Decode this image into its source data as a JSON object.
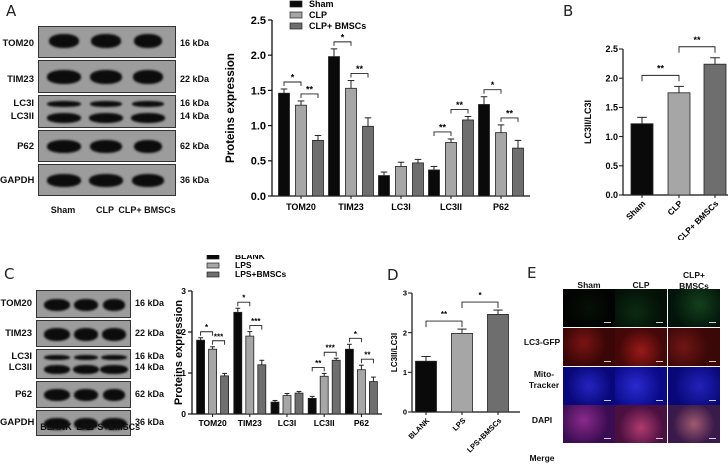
{
  "panels": {
    "A": {
      "letter": "A"
    },
    "B": {
      "letter": "B"
    },
    "C": {
      "letter": "C"
    },
    "D": {
      "letter": "D"
    },
    "E": {
      "letter": "E"
    }
  },
  "western_blot_A": {
    "proteins": [
      "TOM20",
      "TIM23",
      "LC3I",
      "LC3II",
      "P62",
      "GAPDH"
    ],
    "sizes": [
      "16 kDa",
      "22 kDa",
      "16 kDa",
      "14 kDa",
      "62 kDa",
      "36 kDa"
    ],
    "lanes": [
      "Sham",
      "CLP",
      "CLP+ BMSCs"
    ]
  },
  "western_blot_C": {
    "proteins": [
      "TOM20",
      "TIM23",
      "LC3I",
      "LC3II",
      "P62",
      "GAPDH"
    ],
    "sizes": [
      "16 kDa",
      "22 kDa",
      "16 kDa",
      "14 kDa",
      "62 kDa",
      "36 kDa"
    ],
    "lanes": [
      "BLANK",
      "LPS",
      "LPS+BMSCs"
    ]
  },
  "colors": {
    "black": "#0a0a0a",
    "light_gray": "#a6a6a6",
    "dark_gray": "#6e6e6e"
  },
  "chart_data": [
    {
      "id": "A-bar",
      "type": "bar",
      "title": "",
      "xlabel": "",
      "ylabel": "Proteins expression",
      "ylim": [
        0,
        2.5
      ],
      "yticks": [
        "0.0",
        "0.5",
        "1.0",
        "1.5",
        "2.0",
        "2.5"
      ],
      "categories": [
        "TOM20",
        "TIM23",
        "LC3I",
        "LC3II",
        "P62"
      ],
      "legend": [
        "Sham",
        "CLP",
        "CLP+ BMSCs"
      ],
      "legend_position": "top",
      "series": [
        {
          "name": "Sham",
          "values": [
            1.46,
            1.98,
            0.29,
            0.37,
            1.3
          ],
          "errors": [
            0.06,
            0.11,
            0.05,
            0.05,
            0.11
          ]
        },
        {
          "name": "CLP",
          "values": [
            1.29,
            1.53,
            0.42,
            0.76,
            0.9
          ],
          "errors": [
            0.06,
            0.11,
            0.06,
            0.05,
            0.11
          ]
        },
        {
          "name": "CLP+ BMSCs",
          "values": [
            0.79,
            0.99,
            0.47,
            1.08,
            0.68
          ],
          "errors": [
            0.07,
            0.12,
            0.05,
            0.05,
            0.11
          ]
        }
      ],
      "annotations": [
        {
          "category": "TOM20",
          "pair": "Sham-CLP",
          "label": "*"
        },
        {
          "category": "TOM20",
          "pair": "CLP-CLP+ BMSCs",
          "label": "**"
        },
        {
          "category": "TIM23",
          "pair": "Sham-CLP",
          "label": "*"
        },
        {
          "category": "TIM23",
          "pair": "CLP-CLP+ BMSCs",
          "label": "**"
        },
        {
          "category": "LC3II",
          "pair": "Sham-CLP",
          "label": "**"
        },
        {
          "category": "LC3II",
          "pair": "CLP-CLP+ BMSCs",
          "label": "**"
        },
        {
          "category": "P62",
          "pair": "Sham-CLP",
          "label": "*"
        },
        {
          "category": "P62",
          "pair": "CLP-CLP+ BMSCs",
          "label": "**"
        }
      ]
    },
    {
      "id": "B-bar",
      "type": "bar",
      "title": "",
      "xlabel": "",
      "ylabel": "LC3II/LC3I",
      "ylim": [
        0,
        2.5
      ],
      "yticks": [
        "0.0",
        "0.5",
        "1.0",
        "1.5",
        "2.0",
        "2.5"
      ],
      "categories": [
        "Sham",
        "CLP",
        "CLP+ BMSCs"
      ],
      "values": [
        1.22,
        1.75,
        2.24
      ],
      "errors": [
        0.11,
        0.11,
        0.11
      ],
      "annotations": [
        {
          "pair": "Sham-CLP",
          "label": "**"
        },
        {
          "pair": "CLP-CLP+ BMSCs",
          "label": "**"
        }
      ]
    },
    {
      "id": "C-bar",
      "type": "bar",
      "title": "",
      "xlabel": "",
      "ylabel": "Proteins expression",
      "ylim": [
        0,
        3
      ],
      "yticks": [
        "0",
        "1",
        "2",
        "3"
      ],
      "categories": [
        "TOM20",
        "TIM23",
        "LC3I",
        "LC3II",
        "P62"
      ],
      "legend": [
        "BLANK",
        "LPS",
        "LPS+BMSCs"
      ],
      "legend_position": "top",
      "series": [
        {
          "name": "BLANK",
          "values": [
            1.8,
            2.48,
            0.29,
            0.38,
            1.58
          ],
          "errors": [
            0.06,
            0.1,
            0.04,
            0.05,
            0.12
          ]
        },
        {
          "name": "LPS",
          "values": [
            1.58,
            1.9,
            0.45,
            0.92,
            1.08
          ],
          "errors": [
            0.06,
            0.11,
            0.05,
            0.07,
            0.11
          ]
        },
        {
          "name": "LPS+BMSCs",
          "values": [
            0.93,
            1.2,
            0.51,
            1.31,
            0.79
          ],
          "errors": [
            0.06,
            0.11,
            0.04,
            0.05,
            0.11
          ]
        }
      ],
      "annotations": [
        {
          "category": "TOM20",
          "pair": "BLANK-LPS",
          "label": "*"
        },
        {
          "category": "TOM20",
          "pair": "LPS-LPS+BMSCs",
          "label": "***"
        },
        {
          "category": "TIM23",
          "pair": "BLANK-LPS",
          "label": "*"
        },
        {
          "category": "TIM23",
          "pair": "LPS-LPS+BMSCs",
          "label": "***"
        },
        {
          "category": "LC3II",
          "pair": "BLANK-LPS",
          "label": "**"
        },
        {
          "category": "LC3II",
          "pair": "LPS-LPS+BMSCs",
          "label": "***"
        },
        {
          "category": "P62",
          "pair": "BLANK-LPS",
          "label": "*"
        },
        {
          "category": "P62",
          "pair": "LPS-LPS+BMSCs",
          "label": "**"
        }
      ]
    },
    {
      "id": "D-bar",
      "type": "bar",
      "title": "",
      "xlabel": "",
      "ylabel": "LC3II/LC3I",
      "ylim": [
        0,
        3
      ],
      "yticks": [
        "0",
        "1",
        "2",
        "3"
      ],
      "categories": [
        "BLANK",
        "LPS",
        "LPS+BMSCs"
      ],
      "values": [
        1.28,
        1.98,
        2.46
      ],
      "errors": [
        0.12,
        0.11,
        0.11
      ],
      "annotations": [
        {
          "pair": "BLANK-LPS",
          "label": "**"
        },
        {
          "pair": "LPS-LPS+BMSCs",
          "label": "*"
        }
      ]
    }
  ],
  "immunofluorescence_E": {
    "columns": [
      "Sham",
      "CLP",
      "CLP+ BMSCs"
    ],
    "column_labels_multiline": [
      "Sham",
      "CLP",
      "CLP+\nBMSCs"
    ],
    "rows": [
      "LC3-GFP",
      "Mito-\nTracker",
      "DAPI",
      "Merge"
    ],
    "scale_bar": "25 μm"
  }
}
